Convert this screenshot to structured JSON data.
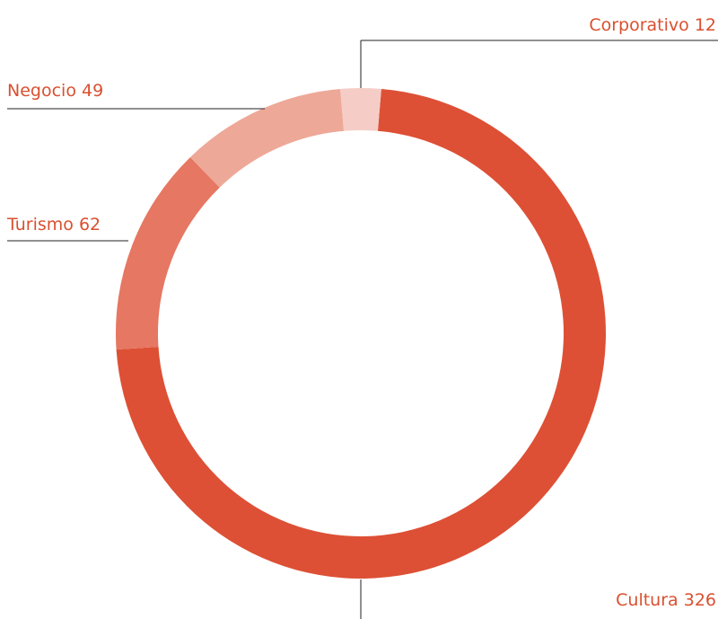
{
  "chart_data": {
    "type": "donut",
    "categories": [
      "Cultura",
      "Turismo",
      "Negocio",
      "Corporativo"
    ],
    "values": [
      326,
      62,
      49,
      12
    ],
    "colors": [
      "#dd5035",
      "#e67762",
      "#eea898",
      "#f5ccc6"
    ]
  }
}
